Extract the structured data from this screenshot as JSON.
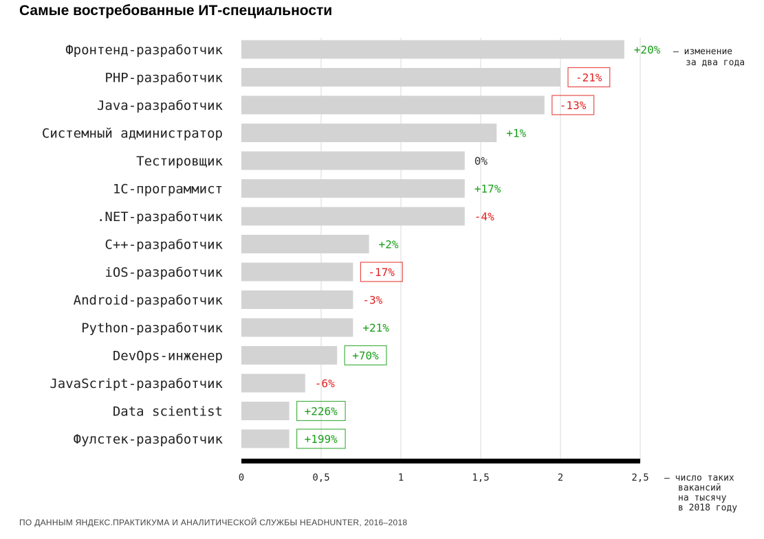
{
  "title": "Самые востребованные ИТ-специальности",
  "source": "ПО ДАННЫМ ЯНДЕКС.ПРАКТИКУМА И АНАЛИТИЧЕСКОЙ СЛУЖБЫ HEADHUNTER,  2016–2018",
  "colors": {
    "bar": "#d3d3d3",
    "positive": "#1a9e1a",
    "negative": "#e0201e",
    "neutral": "#333333",
    "gridline": "#e6e6e6",
    "axis": "#000000"
  },
  "chart_data": {
    "type": "bar",
    "orientation": "horizontal",
    "title": "Самые востребованные ИТ-специальности",
    "categories": [
      "Фронтенд-разработчик",
      "PHP-разработчик",
      "Java-разработчик",
      "Системный администратор",
      "Тестировщик",
      "1С-программист",
      ".NET-разработчик",
      "C++-разработчик",
      "iOS-разработчик",
      "Android-разработчик",
      "Python-разработчик",
      "DevOps-инженер",
      "JavaScript-разработчик",
      "Data scientist",
      "Фулстек-разработчик"
    ],
    "values": [
      2.4,
      2.0,
      1.9,
      1.6,
      1.4,
      1.4,
      1.4,
      0.8,
      0.7,
      0.7,
      0.7,
      0.6,
      0.4,
      0.3,
      0.3
    ],
    "changes": [
      "+20%",
      "-21%",
      "-13%",
      "+1%",
      "0%",
      "+17%",
      "-4%",
      "+2%",
      "-17%",
      "-3%",
      "+21%",
      "+70%",
      "-6%",
      "+226%",
      "+199%"
    ],
    "change_sign": [
      "pos",
      "neg",
      "neg",
      "pos",
      "zero",
      "pos",
      "neg",
      "pos",
      "neg",
      "neg",
      "pos",
      "pos",
      "neg",
      "pos",
      "pos"
    ],
    "change_boxed": [
      false,
      true,
      true,
      false,
      false,
      false,
      false,
      false,
      true,
      false,
      false,
      true,
      false,
      true,
      true
    ],
    "xlim": [
      0,
      2.5
    ],
    "xticks": [
      0,
      0.5,
      1,
      1.5,
      2,
      2.5
    ],
    "xtick_labels": [
      "0",
      "0,5",
      "1",
      "1,5",
      "2",
      "2,5"
    ],
    "grid": true,
    "change_note": [
      "– изменение",
      "за два года"
    ],
    "axis_note": [
      "– число таких",
      "вакансий",
      "на тысячу",
      "в 2018 году"
    ]
  }
}
